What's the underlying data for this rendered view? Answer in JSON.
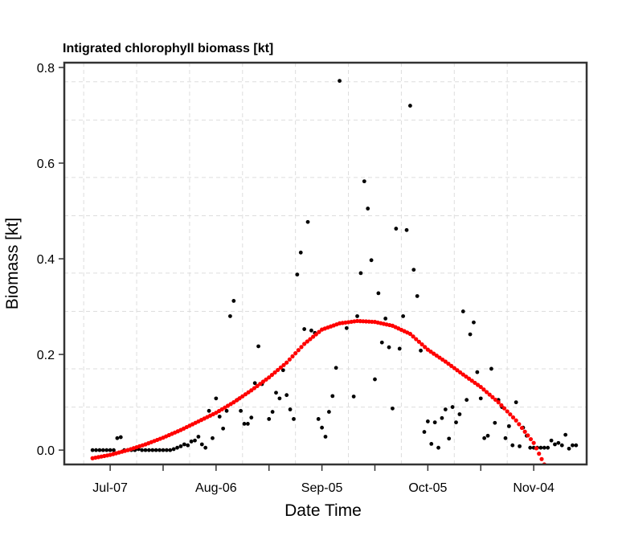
{
  "chart_data": {
    "type": "scatter",
    "title": "Intigrated chlorophyll biomass [kt]",
    "xlabel": "Date Time",
    "ylabel": "Biomass [kt]",
    "x_tick_labels": [
      "Jul-07",
      "Aug-06",
      "Sep-05",
      "Oct-05",
      "Nov-04"
    ],
    "x_tick_dates": [
      "2020-07-07",
      "2020-08-06",
      "2020-09-05",
      "2020-10-05",
      "2020-11-04"
    ],
    "xlim": [
      "2020-06-24",
      "2020-11-19"
    ],
    "y_ticks": [
      0.0,
      0.2,
      0.4,
      0.6,
      0.8
    ],
    "y_tick_labels": [
      "0.0",
      "0.2",
      "0.4",
      "0.6",
      "0.8"
    ],
    "ylim": [
      -0.03,
      0.81
    ],
    "grid": true,
    "series": [
      {
        "color": "#000000",
        "points": [
          [
            "2020-07-02",
            0.0
          ],
          [
            "2020-07-03",
            0.0
          ],
          [
            "2020-07-04",
            0.0
          ],
          [
            "2020-07-05",
            0.0
          ],
          [
            "2020-07-06",
            0.0
          ],
          [
            "2020-07-07",
            0.0
          ],
          [
            "2020-07-08",
            0.0
          ],
          [
            "2020-07-09",
            0.025
          ],
          [
            "2020-07-10",
            0.027
          ],
          [
            "2020-07-11",
            0.0
          ],
          [
            "2020-07-12",
            0.0
          ],
          [
            "2020-07-13",
            0.0
          ],
          [
            "2020-07-14",
            0.0
          ],
          [
            "2020-07-15",
            0.002
          ],
          [
            "2020-07-16",
            0.0
          ],
          [
            "2020-07-17",
            0.0
          ],
          [
            "2020-07-18",
            0.0
          ],
          [
            "2020-07-19",
            0.0
          ],
          [
            "2020-07-20",
            0.0
          ],
          [
            "2020-07-21",
            0.0
          ],
          [
            "2020-07-22",
            0.0
          ],
          [
            "2020-07-23",
            0.0
          ],
          [
            "2020-07-24",
            0.0
          ],
          [
            "2020-07-25",
            0.002
          ],
          [
            "2020-07-26",
            0.005
          ],
          [
            "2020-07-27",
            0.008
          ],
          [
            "2020-07-28",
            0.012
          ],
          [
            "2020-07-29",
            0.01
          ],
          [
            "2020-07-30",
            0.018
          ],
          [
            "2020-07-31",
            0.02
          ],
          [
            "2020-08-01",
            0.028
          ],
          [
            "2020-08-02",
            0.012
          ],
          [
            "2020-08-03",
            0.005
          ],
          [
            "2020-08-04",
            0.082
          ],
          [
            "2020-08-05",
            0.025
          ],
          [
            "2020-08-06",
            0.108
          ],
          [
            "2020-08-07",
            0.07
          ],
          [
            "2020-08-08",
            0.045
          ],
          [
            "2020-08-09",
            0.082
          ],
          [
            "2020-08-10",
            0.28
          ],
          [
            "2020-08-11",
            0.312
          ],
          [
            "2020-08-12",
            0.105
          ],
          [
            "2020-08-13",
            0.082
          ],
          [
            "2020-08-14",
            0.055
          ],
          [
            "2020-08-15",
            0.055
          ],
          [
            "2020-08-16",
            0.068
          ],
          [
            "2020-08-17",
            0.14
          ],
          [
            "2020-08-18",
            0.217
          ],
          [
            "2020-08-19",
            0.138
          ],
          [
            "2020-08-21",
            0.065
          ],
          [
            "2020-08-22",
            0.08
          ],
          [
            "2020-08-23",
            0.12
          ],
          [
            "2020-08-24",
            0.108
          ],
          [
            "2020-08-25",
            0.167
          ],
          [
            "2020-08-26",
            0.115
          ],
          [
            "2020-08-27",
            0.085
          ],
          [
            "2020-08-28",
            0.065
          ],
          [
            "2020-08-29",
            0.367
          ],
          [
            "2020-08-30",
            0.413
          ],
          [
            "2020-08-31",
            0.253
          ],
          [
            "2020-09-01",
            0.477
          ],
          [
            "2020-09-02",
            0.25
          ],
          [
            "2020-09-03",
            0.245
          ],
          [
            "2020-09-04",
            0.065
          ],
          [
            "2020-09-05",
            0.047
          ],
          [
            "2020-09-06",
            0.028
          ],
          [
            "2020-09-07",
            0.08
          ],
          [
            "2020-09-08",
            0.113
          ],
          [
            "2020-09-09",
            0.172
          ],
          [
            "2020-09-10",
            0.772
          ],
          [
            "2020-09-12",
            0.255
          ],
          [
            "2020-09-14",
            0.112
          ],
          [
            "2020-09-15",
            0.28
          ],
          [
            "2020-09-16",
            0.37
          ],
          [
            "2020-09-17",
            0.562
          ],
          [
            "2020-09-18",
            0.505
          ],
          [
            "2020-09-19",
            0.397
          ],
          [
            "2020-09-20",
            0.148
          ],
          [
            "2020-09-21",
            0.328
          ],
          [
            "2020-09-22",
            0.225
          ],
          [
            "2020-09-23",
            0.275
          ],
          [
            "2020-09-24",
            0.215
          ],
          [
            "2020-09-25",
            0.087
          ],
          [
            "2020-09-26",
            0.463
          ],
          [
            "2020-09-27",
            0.212
          ],
          [
            "2020-09-28",
            0.28
          ],
          [
            "2020-09-29",
            0.46
          ],
          [
            "2020-09-30",
            0.72
          ],
          [
            "2020-10-01",
            0.377
          ],
          [
            "2020-10-02",
            0.322
          ],
          [
            "2020-10-03",
            0.208
          ],
          [
            "2020-10-04",
            0.038
          ],
          [
            "2020-10-05",
            0.06
          ],
          [
            "2020-10-06",
            0.013
          ],
          [
            "2020-10-07",
            0.058
          ],
          [
            "2020-10-08",
            0.005
          ],
          [
            "2020-10-09",
            0.067
          ],
          [
            "2020-10-10",
            0.085
          ],
          [
            "2020-10-11",
            0.024
          ],
          [
            "2020-10-12",
            0.09
          ],
          [
            "2020-10-13",
            0.058
          ],
          [
            "2020-10-14",
            0.075
          ],
          [
            "2020-10-15",
            0.29
          ],
          [
            "2020-10-16",
            0.105
          ],
          [
            "2020-10-17",
            0.242
          ],
          [
            "2020-10-18",
            0.267
          ],
          [
            "2020-10-19",
            0.163
          ],
          [
            "2020-10-20",
            0.108
          ],
          [
            "2020-10-21",
            0.025
          ],
          [
            "2020-10-22",
            0.03
          ],
          [
            "2020-10-23",
            0.17
          ],
          [
            "2020-10-24",
            0.057
          ],
          [
            "2020-10-25",
            0.105
          ],
          [
            "2020-10-26",
            0.09
          ],
          [
            "2020-10-27",
            0.025
          ],
          [
            "2020-10-28",
            0.05
          ],
          [
            "2020-10-29",
            0.01
          ],
          [
            "2020-10-30",
            0.1
          ],
          [
            "2020-10-31",
            0.008
          ],
          [
            "2020-11-01",
            0.047
          ],
          [
            "2020-11-02",
            0.03
          ],
          [
            "2020-11-03",
            0.005
          ],
          [
            "2020-11-04",
            0.005
          ],
          [
            "2020-11-05",
            0.005
          ],
          [
            "2020-11-06",
            0.005
          ],
          [
            "2020-11-07",
            0.005
          ],
          [
            "2020-11-08",
            0.005
          ],
          [
            "2020-11-09",
            0.02
          ],
          [
            "2020-11-10",
            0.012
          ],
          [
            "2020-11-11",
            0.015
          ],
          [
            "2020-11-12",
            0.01
          ],
          [
            "2020-11-13",
            0.032
          ],
          [
            "2020-11-14",
            0.003
          ],
          [
            "2020-11-15",
            0.01
          ],
          [
            "2020-11-16",
            0.01
          ]
        ]
      },
      {
        "color": "#ff0000",
        "points": [
          [
            "2020-07-02",
            -0.017
          ],
          [
            "2020-07-07",
            -0.01
          ],
          [
            "2020-07-12",
            0.0
          ],
          [
            "2020-07-17",
            0.012
          ],
          [
            "2020-07-22",
            0.026
          ],
          [
            "2020-07-27",
            0.042
          ],
          [
            "2020-08-01",
            0.06
          ],
          [
            "2020-08-06",
            0.078
          ],
          [
            "2020-08-11",
            0.1
          ],
          [
            "2020-08-16",
            0.125
          ],
          [
            "2020-08-21",
            0.152
          ],
          [
            "2020-08-26",
            0.183
          ],
          [
            "2020-08-31",
            0.222
          ],
          [
            "2020-09-05",
            0.252
          ],
          [
            "2020-09-10",
            0.265
          ],
          [
            "2020-09-15",
            0.27
          ],
          [
            "2020-09-20",
            0.268
          ],
          [
            "2020-09-25",
            0.26
          ],
          [
            "2020-09-30",
            0.243
          ],
          [
            "2020-10-05",
            0.21
          ],
          [
            "2020-10-10",
            0.185
          ],
          [
            "2020-10-15",
            0.158
          ],
          [
            "2020-10-20",
            0.132
          ],
          [
            "2020-10-25",
            0.1
          ],
          [
            "2020-10-30",
            0.062
          ],
          [
            "2020-11-04",
            0.015
          ],
          [
            "2020-11-07",
            -0.03
          ]
        ]
      }
    ]
  }
}
